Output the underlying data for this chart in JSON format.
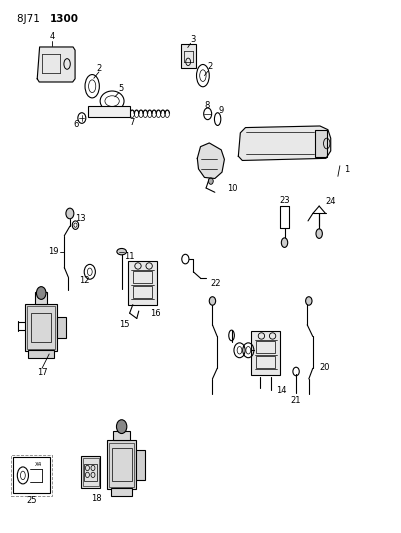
{
  "title_normal": "8J71 ",
  "title_bold": "1300",
  "bg_color": "#ffffff",
  "line_color": "#000000",
  "fig_width": 4.01,
  "fig_height": 5.33,
  "dpi": 100,
  "label_fs": 6,
  "lw": 0.8
}
